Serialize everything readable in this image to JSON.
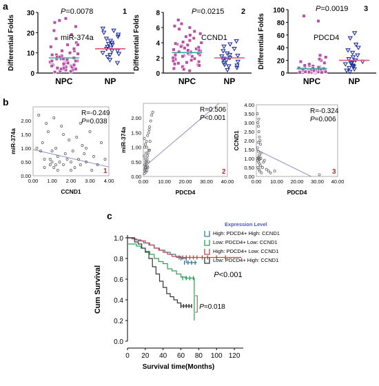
{
  "panel_labels": {
    "a": "a",
    "b": "b",
    "c": "c"
  },
  "colors": {
    "npc": "#b84fa6",
    "np": "#1d2fa0",
    "mean_line_npc": "#3aa6a0",
    "mean_line_np": "#d9537a",
    "scatter": "#555555",
    "fit": "#8a8fc0",
    "corner_num": "#b03030",
    "legend_title": "#4a55b8"
  },
  "chart_data": [
    {
      "type": "scatter",
      "panel": "a1",
      "ylabel": "Differential Folds",
      "stat": "P=0.0078",
      "number": "1",
      "gene": "miR-374a",
      "categories": [
        "NPC",
        "NP"
      ],
      "ylim": [
        0,
        30
      ],
      "yticks": [
        "0",
        "10",
        "20",
        "30"
      ],
      "series": [
        {
          "name": "NPC",
          "mean": 7.5,
          "values": [
            0.5,
            1,
            1.5,
            2,
            2.5,
            3,
            3.5,
            4,
            4.5,
            5,
            5.5,
            6,
            6.5,
            7,
            7.5,
            8,
            8.5,
            9,
            9.5,
            10,
            11,
            12,
            13,
            14,
            15,
            17,
            19,
            21,
            23,
            25,
            26,
            27,
            1,
            2,
            3,
            4,
            5,
            6,
            7,
            8,
            3,
            4,
            5,
            6,
            2.5,
            1.5,
            0.8,
            9,
            11,
            14,
            6,
            7,
            8,
            4.5,
            3.5,
            2
          ]
        },
        {
          "name": "NP",
          "mean": 12,
          "values": [
            5,
            6.5,
            8,
            9,
            10,
            11,
            12,
            13,
            14,
            15,
            16,
            17,
            18,
            19,
            20,
            21,
            22,
            9.5,
            12.5,
            14.5,
            11
          ]
        }
      ]
    },
    {
      "type": "scatter",
      "panel": "a2",
      "ylabel": "Differential Folds",
      "stat": "P=0.0215",
      "number": "2",
      "gene": "CCND1",
      "categories": [
        "NPC",
        "NP"
      ],
      "ylim": [
        0,
        8
      ],
      "yticks": [
        "0",
        "2",
        "4",
        "6",
        "8"
      ],
      "series": [
        {
          "name": "NPC",
          "mean": 2.7,
          "values": [
            0.3,
            0.6,
            0.9,
            1.1,
            1.3,
            1.5,
            1.7,
            1.9,
            2.1,
            2.2,
            2.4,
            2.5,
            2.6,
            2.7,
            2.8,
            2.9,
            3.0,
            3.1,
            3.2,
            3.4,
            3.6,
            3.8,
            4.0,
            4.3,
            4.6,
            5.0,
            5.5,
            6.0,
            6.5,
            7.0,
            1.8,
            2.3,
            2.6,
            3.3,
            3.5,
            2.0,
            1.6,
            2.9,
            3.7,
            4.1,
            0.8,
            1.2,
            2.4,
            5.2,
            6.2,
            2.8,
            3.0,
            1.4,
            2.2,
            3.9,
            0.5,
            1.0,
            4.8,
            5.8
          ]
        },
        {
          "name": "NP",
          "mean": 2.0,
          "values": [
            0.4,
            0.7,
            0.9,
            1.1,
            1.3,
            1.5,
            1.7,
            1.9,
            2.0,
            2.2,
            2.4,
            2.6,
            2.9,
            3.2,
            3.5,
            3.8,
            4.2,
            1.0,
            1.8,
            2.3
          ]
        }
      ]
    },
    {
      "type": "scatter",
      "panel": "a3",
      "ylabel": "Differential Folds",
      "stat": "P=0.0019",
      "number": "3",
      "gene": "PDCD4",
      "categories": [
        "NPC",
        "NP"
      ],
      "ylim": [
        0,
        100
      ],
      "yticks": [
        "0",
        "20",
        "40",
        "60",
        "80",
        "100"
      ],
      "series": [
        {
          "name": "NPC",
          "mean": 7,
          "values": [
            0.5,
            1,
            1.5,
            2,
            2.5,
            3,
            3.5,
            4,
            4.5,
            5,
            6,
            7,
            8,
            9,
            10,
            11,
            12,
            14,
            16,
            18,
            20,
            22,
            25,
            28,
            1,
            2,
            3,
            4,
            5,
            6,
            3,
            2,
            1.5,
            4,
            6,
            8,
            10,
            12,
            2,
            3,
            5,
            7,
            9,
            1,
            2,
            4,
            6,
            82,
            90
          ]
        },
        {
          "name": "NP",
          "mean": 20,
          "values": [
            2,
            4,
            6,
            8,
            10,
            12,
            14,
            16,
            18,
            20,
            22,
            25,
            28,
            32,
            36,
            40,
            45,
            55,
            63,
            15,
            11
          ]
        }
      ]
    },
    {
      "type": "scatter",
      "panel": "b1",
      "xlabel": "CCND1",
      "ylabel": "miR-374a",
      "R": "R=-0.249",
      "P": "P=0.038",
      "number": "1",
      "xlim": [
        0,
        4
      ],
      "ylim": [
        0,
        2.5
      ],
      "xticks": [
        "0.00",
        "1.00",
        "2.00",
        "3.00",
        "4.00"
      ],
      "yticks": [
        "0.00",
        "0.50",
        "1.00",
        "1.50",
        "2.00"
      ],
      "fit": [
        [
          0,
          0.95
        ],
        [
          4,
          0.32
        ]
      ],
      "points": [
        [
          0.3,
          2.2
        ],
        [
          0.5,
          1.2
        ],
        [
          0.6,
          0.6
        ],
        [
          0.8,
          1.6
        ],
        [
          0.9,
          0.4
        ],
        [
          1.0,
          0.9
        ],
        [
          1.1,
          0.3
        ],
        [
          1.2,
          1.0
        ],
        [
          1.3,
          0.7
        ],
        [
          1.4,
          0.5
        ],
        [
          1.5,
          1.8
        ],
        [
          1.6,
          0.4
        ],
        [
          1.7,
          0.8
        ],
        [
          1.8,
          0.6
        ],
        [
          1.9,
          1.3
        ],
        [
          2.0,
          0.5
        ],
        [
          2.1,
          0.9
        ],
        [
          2.2,
          0.3
        ],
        [
          2.3,
          1.4
        ],
        [
          2.4,
          0.6
        ],
        [
          2.5,
          0.4
        ],
        [
          2.6,
          1.1
        ],
        [
          2.7,
          0.8
        ],
        [
          2.8,
          0.5
        ],
        [
          3.0,
          1.6
        ],
        [
          3.2,
          0.7
        ],
        [
          3.4,
          0.4
        ],
        [
          3.6,
          1.2
        ],
        [
          3.8,
          0.6
        ],
        [
          1.0,
          0.5
        ],
        [
          0.9,
          0.6
        ],
        [
          1.2,
          0.4
        ],
        [
          1.3,
          0.2
        ],
        [
          0.6,
          0.3
        ],
        [
          0.4,
          0.9
        ],
        [
          2.0,
          0.2
        ],
        [
          2.8,
          1.0
        ],
        [
          1.6,
          1.5
        ],
        [
          0.2,
          1.0
        ],
        [
          3.1,
          0.2
        ],
        [
          2.5,
          1.9
        ],
        [
          1.1,
          2.1
        ],
        [
          0.7,
          1.9
        ]
      ]
    },
    {
      "type": "scatter",
      "panel": "b2",
      "xlabel": "PDCD4",
      "ylabel": "miR-374a",
      "R": "R=0.506",
      "P": "P<0.001",
      "number": "2",
      "xlim": [
        0,
        40
      ],
      "ylim": [
        0,
        2.5
      ],
      "xticks": [
        "0.00",
        "10.00",
        "20.00",
        "30.00",
        "40.00"
      ],
      "yticks": [
        "0.00",
        "0.50",
        "1.00",
        "1.50",
        "2.00"
      ],
      "fit": [
        [
          0,
          0.3
        ],
        [
          36,
          2.5
        ]
      ],
      "points": [
        [
          0.5,
          0.1
        ],
        [
          0.8,
          0.2
        ],
        [
          1.0,
          0.3
        ],
        [
          1.2,
          0.4
        ],
        [
          1.5,
          0.5
        ],
        [
          1.8,
          0.6
        ],
        [
          2.0,
          0.7
        ],
        [
          2.2,
          0.8
        ],
        [
          2.5,
          0.9
        ],
        [
          0.6,
          1.0
        ],
        [
          1.0,
          1.1
        ],
        [
          1.5,
          1.2
        ],
        [
          2.0,
          1.4
        ],
        [
          2.5,
          1.5
        ],
        [
          3.0,
          1.7
        ],
        [
          3.5,
          1.9
        ],
        [
          4.0,
          2.1
        ],
        [
          0.7,
          0.4
        ],
        [
          1.1,
          0.5
        ],
        [
          1.4,
          0.3
        ],
        [
          0.9,
          0.6
        ],
        [
          1.3,
          0.8
        ],
        [
          1.7,
          0.2
        ],
        [
          2.1,
          0.3
        ],
        [
          2.4,
          0.5
        ],
        [
          0.4,
          0.7
        ],
        [
          3.0,
          0.9
        ],
        [
          3.2,
          1.2
        ],
        [
          1.6,
          1.0
        ],
        [
          0.5,
          1.3
        ],
        [
          4.5,
          2.2
        ],
        [
          2.8,
          1.6
        ],
        [
          1.2,
          0.15
        ],
        [
          0.8,
          0.25
        ],
        [
          1.9,
          0.35
        ]
      ]
    },
    {
      "type": "scatter",
      "panel": "b3",
      "xlabel": "PDCD4",
      "ylabel": "CCND1",
      "R": "R=-0.324",
      "P": "P=0.006",
      "number": "3",
      "xlim": [
        0,
        40
      ],
      "ylim": [
        0,
        4
      ],
      "xticks": [
        "0.00",
        "10.00",
        "20.00",
        "30.00",
        "40.00"
      ],
      "yticks": [
        "0.00",
        "0.50",
        "1.00",
        "1.50",
        "2.00",
        "2.50",
        "3.00",
        "3.50",
        "4.00"
      ],
      "fit": [
        [
          0,
          1.5
        ],
        [
          27,
          0
        ]
      ],
      "points": [
        [
          0.5,
          3.5
        ],
        [
          0.8,
          3.0
        ],
        [
          1.0,
          2.8
        ],
        [
          1.2,
          2.5
        ],
        [
          1.5,
          2.2
        ],
        [
          1.8,
          2.0
        ],
        [
          2.0,
          1.8
        ],
        [
          0.6,
          1.6
        ],
        [
          1.0,
          1.4
        ],
        [
          1.4,
          1.2
        ],
        [
          1.8,
          1.1
        ],
        [
          2.2,
          1.0
        ],
        [
          0.7,
          0.9
        ],
        [
          1.1,
          0.8
        ],
        [
          1.6,
          0.7
        ],
        [
          2.0,
          0.6
        ],
        [
          0.8,
          0.5
        ],
        [
          1.3,
          0.4
        ],
        [
          1.7,
          0.3
        ],
        [
          2.5,
          0.2
        ],
        [
          3.0,
          0.5
        ],
        [
          4.0,
          0.9
        ],
        [
          5.0,
          0.4
        ],
        [
          6.0,
          0.3
        ],
        [
          0.5,
          1.0
        ],
        [
          0.9,
          1.9
        ],
        [
          1.2,
          3.2
        ],
        [
          1.5,
          0.95
        ],
        [
          2.3,
          1.3
        ],
        [
          3.5,
          0.8
        ],
        [
          7.0,
          0.2
        ],
        [
          9.0,
          0.3
        ],
        [
          31,
          0.1
        ],
        [
          1.0,
          1.05
        ],
        [
          1.3,
          0.98
        ]
      ]
    },
    {
      "type": "line",
      "panel": "c",
      "xlabel": "Survival time(Months)",
      "ylabel": "Cum Survival",
      "xlim": [
        0,
        130
      ],
      "ylim": [
        0,
        1.0
      ],
      "xticks": [
        "0",
        "20",
        "40",
        "60",
        "80",
        "100",
        "120"
      ],
      "yticks": [
        "0.0",
        "0.2",
        "0.4",
        "0.6",
        "0.8",
        "1.0"
      ],
      "legend_title": "Expression Level",
      "p_overall": "P<0.001",
      "p_pair": "P=0.018",
      "series": [
        {
          "name": "High: PDCD4+ High: CCND1",
          "color": "#3a7a9a",
          "x": [
            0,
            8,
            12,
            18,
            24,
            30,
            36,
            42,
            48,
            54,
            60,
            66,
            72,
            78
          ],
          "y": [
            1.0,
            0.98,
            0.97,
            0.95,
            0.93,
            0.9,
            0.88,
            0.86,
            0.84,
            0.82,
            0.8,
            0.76,
            0.76,
            0.76
          ],
          "censor": [
            [
              60,
              0.8
            ],
            [
              64,
              0.76
            ],
            [
              68,
              0.76
            ],
            [
              72,
              0.76
            ],
            [
              76,
              0.76
            ]
          ]
        },
        {
          "name": "Low: PDCD4+ Low: CCND1",
          "color": "#2aa055",
          "x": [
            0,
            5,
            10,
            15,
            20,
            25,
            30,
            35,
            40,
            45,
            50,
            55,
            60,
            65,
            70,
            75,
            75
          ],
          "y": [
            0.94,
            0.94,
            0.92,
            0.9,
            0.87,
            0.84,
            0.8,
            0.77,
            0.75,
            0.7,
            0.68,
            0.65,
            0.62,
            0.61,
            0.61,
            0.61,
            0.2
          ],
          "censor": [
            [
              62,
              0.61
            ],
            [
              66,
              0.61
            ],
            [
              70,
              0.61
            ],
            [
              74,
              0.61
            ]
          ]
        },
        {
          "name": "High: PDCD4+ Low: CCND1",
          "color": "#c0454a",
          "x": [
            0,
            5,
            10,
            15,
            20,
            25,
            30,
            35,
            40,
            45,
            50,
            55,
            60,
            70,
            80,
            90,
            100,
            110,
            120,
            128
          ],
          "y": [
            1.0,
            0.99,
            0.98,
            0.97,
            0.95,
            0.93,
            0.9,
            0.88,
            0.86,
            0.84,
            0.82,
            0.81,
            0.81,
            0.81,
            0.81,
            0.81,
            0.81,
            0.81,
            0.81,
            0.81
          ],
          "censor": [
            [
              58,
              0.81
            ],
            [
              62,
              0.81
            ],
            [
              66,
              0.81
            ],
            [
              70,
              0.81
            ],
            [
              74,
              0.81
            ],
            [
              78,
              0.81
            ],
            [
              84,
              0.81
            ],
            [
              90,
              0.81
            ],
            [
              100,
              0.81
            ],
            [
              110,
              0.81
            ]
          ]
        },
        {
          "name": "Low: PDCD4+ High: CCND1",
          "color": "#333333",
          "x": [
            0,
            8,
            12,
            16,
            20,
            24,
            28,
            32,
            36,
            40,
            44,
            48,
            52,
            56,
            60,
            70,
            72
          ],
          "y": [
            1.0,
            0.96,
            0.94,
            0.9,
            0.86,
            0.8,
            0.72,
            0.65,
            0.58,
            0.52,
            0.46,
            0.43,
            0.4,
            0.37,
            0.34,
            0.34,
            0.34
          ],
          "censor": [
            [
              60,
              0.34
            ],
            [
              63,
              0.34
            ],
            [
              66,
              0.34
            ],
            [
              69,
              0.34
            ],
            [
              72,
              0.34
            ]
          ]
        }
      ]
    }
  ]
}
